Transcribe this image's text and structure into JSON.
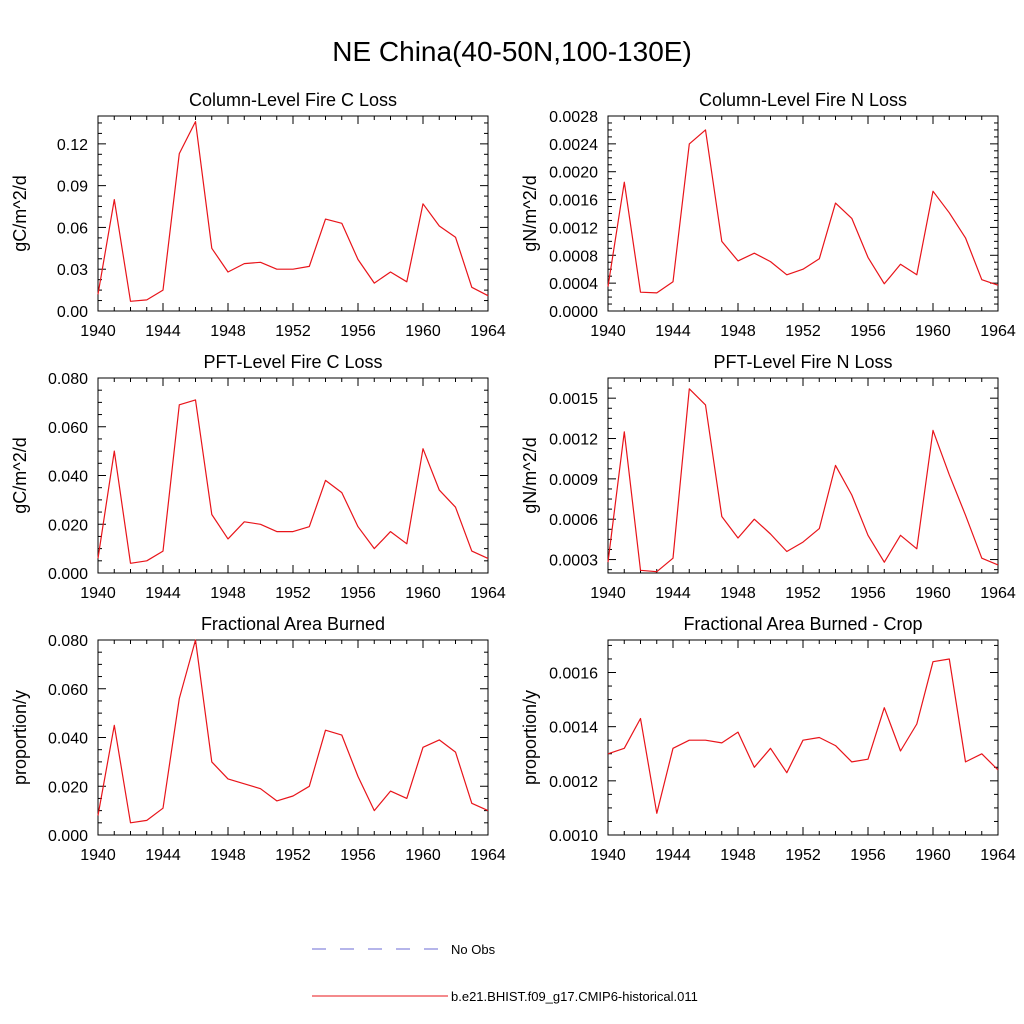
{
  "figure_title": "NE China(40-50N,100-130E)",
  "legend": {
    "items": [
      {
        "label": "No Obs",
        "color": "#6b6bd6",
        "style": "dashed"
      },
      {
        "label": "b.e21.BHIST.f09_g17.CMIP6-historical.011",
        "color": "#e8141a",
        "style": "solid"
      }
    ]
  },
  "chart_data": [
    {
      "type": "line",
      "title": "Column-Level Fire C Loss",
      "ylabel": "gC/m^2/d",
      "xlim": [
        1940,
        1964
      ],
      "ylim": [
        0,
        0.14
      ],
      "xticks": [
        "1940",
        "1944",
        "1948",
        "1952",
        "1956",
        "1960",
        "1964"
      ],
      "yticks": [
        "0.00",
        "0.03",
        "0.06",
        "0.09",
        "0.12"
      ],
      "ytick_values": [
        0,
        0.03,
        0.06,
        0.09,
        0.12
      ],
      "x": [
        1940,
        1941,
        1942,
        1943,
        1944,
        1945,
        1946,
        1947,
        1948,
        1949,
        1950,
        1951,
        1952,
        1953,
        1954,
        1955,
        1956,
        1957,
        1958,
        1959,
        1960,
        1961,
        1962,
        1963,
        1964
      ],
      "series": [
        {
          "name": "b.e21.BHIST.f09_g17.CMIP6-historical.011",
          "color": "#e8141a",
          "values": [
            0.012,
            0.08,
            0.007,
            0.008,
            0.015,
            0.113,
            0.136,
            0.045,
            0.028,
            0.034,
            0.035,
            0.03,
            0.03,
            0.032,
            0.066,
            0.063,
            0.037,
            0.02,
            0.028,
            0.021,
            0.077,
            0.061,
            0.053,
            0.017,
            0.011
          ]
        }
      ]
    },
    {
      "type": "line",
      "title": "Column-Level Fire N Loss",
      "ylabel": "gN/m^2/d",
      "xlim": [
        1940,
        1964
      ],
      "ylim": [
        0,
        0.0028
      ],
      "xticks": [
        "1940",
        "1944",
        "1948",
        "1952",
        "1956",
        "1960",
        "1964"
      ],
      "yticks": [
        "0.0000",
        "0.0004",
        "0.0008",
        "0.0012",
        "0.0016",
        "0.0020",
        "0.0024",
        "0.0028"
      ],
      "ytick_values": [
        0,
        0.0004,
        0.0008,
        0.0012,
        0.0016,
        0.002,
        0.0024,
        0.0028
      ],
      "x": [
        1940,
        1941,
        1942,
        1943,
        1944,
        1945,
        1946,
        1947,
        1948,
        1949,
        1950,
        1951,
        1952,
        1953,
        1954,
        1955,
        1956,
        1957,
        1958,
        1959,
        1960,
        1961,
        1962,
        1963,
        1964
      ],
      "series": [
        {
          "name": "b.e21.BHIST.f09_g17.CMIP6-historical.011",
          "color": "#e8141a",
          "values": [
            0.00035,
            0.00185,
            0.00027,
            0.00026,
            0.00042,
            0.0024,
            0.0026,
            0.001,
            0.00072,
            0.00083,
            0.00071,
            0.00052,
            0.0006,
            0.00075,
            0.00155,
            0.00133,
            0.00077,
            0.00039,
            0.00067,
            0.00052,
            0.00172,
            0.00141,
            0.00105,
            0.00045,
            0.00037
          ]
        }
      ]
    },
    {
      "type": "line",
      "title": "PFT-Level Fire C Loss",
      "ylabel": "gC/m^2/d",
      "xlim": [
        1940,
        1964
      ],
      "ylim": [
        0,
        0.08
      ],
      "xticks": [
        "1940",
        "1944",
        "1948",
        "1952",
        "1956",
        "1960",
        "1964"
      ],
      "yticks": [
        "0.000",
        "0.020",
        "0.040",
        "0.060",
        "0.080"
      ],
      "ytick_values": [
        0,
        0.02,
        0.04,
        0.06,
        0.08
      ],
      "x": [
        1940,
        1941,
        1942,
        1943,
        1944,
        1945,
        1946,
        1947,
        1948,
        1949,
        1950,
        1951,
        1952,
        1953,
        1954,
        1955,
        1956,
        1957,
        1958,
        1959,
        1960,
        1961,
        1962,
        1963,
        1964
      ],
      "series": [
        {
          "name": "b.e21.BHIST.f09_g17.CMIP6-historical.011",
          "color": "#e8141a",
          "values": [
            0.006,
            0.05,
            0.004,
            0.005,
            0.009,
            0.069,
            0.071,
            0.024,
            0.014,
            0.021,
            0.02,
            0.017,
            0.017,
            0.019,
            0.038,
            0.033,
            0.019,
            0.01,
            0.017,
            0.012,
            0.051,
            0.034,
            0.027,
            0.009,
            0.006
          ]
        }
      ]
    },
    {
      "type": "line",
      "title": "PFT-Level Fire N Loss",
      "ylabel": "gN/m^2/d",
      "xlim": [
        1940,
        1964
      ],
      "ylim": [
        0.0002,
        0.00165
      ],
      "xticks": [
        "1940",
        "1944",
        "1948",
        "1952",
        "1956",
        "1960",
        "1964"
      ],
      "yticks": [
        "0.0003",
        "0.0006",
        "0.0009",
        "0.0012",
        "0.0015"
      ],
      "ytick_values": [
        0.0003,
        0.0006,
        0.0009,
        0.0012,
        0.0015
      ],
      "x": [
        1940,
        1941,
        1942,
        1943,
        1944,
        1945,
        1946,
        1947,
        1948,
        1949,
        1950,
        1951,
        1952,
        1953,
        1954,
        1955,
        1956,
        1957,
        1958,
        1959,
        1960,
        1961,
        1962,
        1963,
        1964
      ],
      "series": [
        {
          "name": "b.e21.BHIST.f09_g17.CMIP6-historical.011",
          "color": "#e8141a",
          "values": [
            0.00028,
            0.00125,
            0.00022,
            0.00021,
            0.00031,
            0.00157,
            0.00145,
            0.00062,
            0.00046,
            0.0006,
            0.00049,
            0.00036,
            0.00043,
            0.00053,
            0.001,
            0.00078,
            0.00048,
            0.00028,
            0.00048,
            0.00038,
            0.00126,
            0.00093,
            0.00063,
            0.00031,
            0.00026
          ]
        }
      ]
    },
    {
      "type": "line",
      "title": "Fractional Area Burned",
      "ylabel": "proportion/y",
      "xlim": [
        1940,
        1964
      ],
      "ylim": [
        0,
        0.08
      ],
      "xticks": [
        "1940",
        "1944",
        "1948",
        "1952",
        "1956",
        "1960",
        "1964"
      ],
      "yticks": [
        "0.000",
        "0.020",
        "0.040",
        "0.060",
        "0.080"
      ],
      "ytick_values": [
        0,
        0.02,
        0.04,
        0.06,
        0.08
      ],
      "x": [
        1940,
        1941,
        1942,
        1943,
        1944,
        1945,
        1946,
        1947,
        1948,
        1949,
        1950,
        1951,
        1952,
        1953,
        1954,
        1955,
        1956,
        1957,
        1958,
        1959,
        1960,
        1961,
        1962,
        1963,
        1964
      ],
      "series": [
        {
          "name": "b.e21.BHIST.f09_g17.CMIP6-historical.011",
          "color": "#e8141a",
          "values": [
            0.008,
            0.045,
            0.005,
            0.006,
            0.011,
            0.056,
            0.08,
            0.03,
            0.023,
            0.021,
            0.019,
            0.014,
            0.016,
            0.02,
            0.043,
            0.041,
            0.024,
            0.01,
            0.018,
            0.015,
            0.036,
            0.039,
            0.034,
            0.013,
            0.01
          ]
        }
      ]
    },
    {
      "type": "line",
      "title": "Fractional Area Burned - Crop",
      "ylabel": "proportion/y",
      "xlim": [
        1940,
        1964
      ],
      "ylim": [
        0.001,
        0.00172
      ],
      "xticks": [
        "1940",
        "1944",
        "1948",
        "1952",
        "1956",
        "1960",
        "1964"
      ],
      "yticks": [
        "0.0010",
        "0.0012",
        "0.0014",
        "0.0016"
      ],
      "ytick_values": [
        0.001,
        0.0012,
        0.0014,
        0.0016
      ],
      "x": [
        1940,
        1941,
        1942,
        1943,
        1944,
        1945,
        1946,
        1947,
        1948,
        1949,
        1950,
        1951,
        1952,
        1953,
        1954,
        1955,
        1956,
        1957,
        1958,
        1959,
        1960,
        1961,
        1962,
        1963,
        1964
      ],
      "series": [
        {
          "name": "b.e21.BHIST.f09_g17.CMIP6-historical.011",
          "color": "#e8141a",
          "values": [
            0.0013,
            0.00132,
            0.00143,
            0.00108,
            0.00132,
            0.00135,
            0.00135,
            0.00134,
            0.00138,
            0.00125,
            0.00132,
            0.00123,
            0.00135,
            0.00136,
            0.00133,
            0.00127,
            0.00128,
            0.00147,
            0.00131,
            0.00141,
            0.00164,
            0.00165,
            0.00127,
            0.0013,
            0.00124
          ]
        }
      ]
    }
  ]
}
